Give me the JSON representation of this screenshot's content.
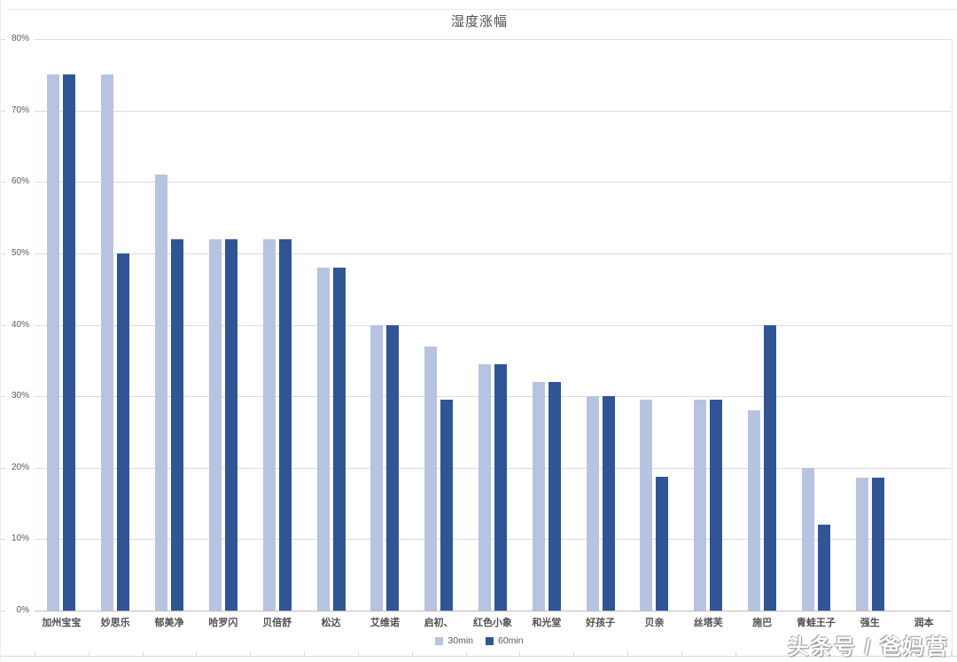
{
  "watermark": "头条号 / 爸妈营",
  "colors": {
    "series_30min": "#b6c4e1",
    "series_60min": "#2f5597",
    "gridline": "#dcdcdc",
    "text": "#595959"
  },
  "chart_data": {
    "type": "bar",
    "title": "湿度涨幅",
    "categories": [
      "加州宝宝",
      "妙思乐",
      "郁美净",
      "哈罗闪",
      "贝倍舒",
      "松达",
      "艾维诺",
      "启初、",
      "红色小象",
      "和光堂",
      "好孩子",
      "贝亲",
      "丝塔芙",
      "施巴",
      "青蛙王子",
      "强生",
      "润本"
    ],
    "series": [
      {
        "name": "30min",
        "color": "#b6c4e1",
        "values": [
          75,
          75,
          61,
          52,
          52,
          48,
          40,
          37,
          34.5,
          32,
          30,
          29.5,
          29.5,
          28,
          20,
          18.6,
          0
        ]
      },
      {
        "name": "60min",
        "color": "#2f5597",
        "values": [
          75,
          50,
          52,
          52,
          52,
          48,
          40,
          29.5,
          34.5,
          32,
          30,
          18.7,
          29.5,
          40,
          12,
          18.6,
          0
        ]
      }
    ],
    "xlabel": "",
    "ylabel": "",
    "ylim": [
      0,
      80
    ],
    "grid": true,
    "legend_position": "bottom",
    "yticks": [
      {
        "value": 0,
        "label": "0%"
      },
      {
        "value": 10,
        "label": "10%"
      },
      {
        "value": 20,
        "label": "20%"
      },
      {
        "value": 30,
        "label": "30%"
      },
      {
        "value": 40,
        "label": "40%"
      },
      {
        "value": 50,
        "label": "50%"
      },
      {
        "value": 60,
        "label": "60%"
      },
      {
        "value": 70,
        "label": "70%"
      },
      {
        "value": 80,
        "label": "80%"
      }
    ]
  }
}
